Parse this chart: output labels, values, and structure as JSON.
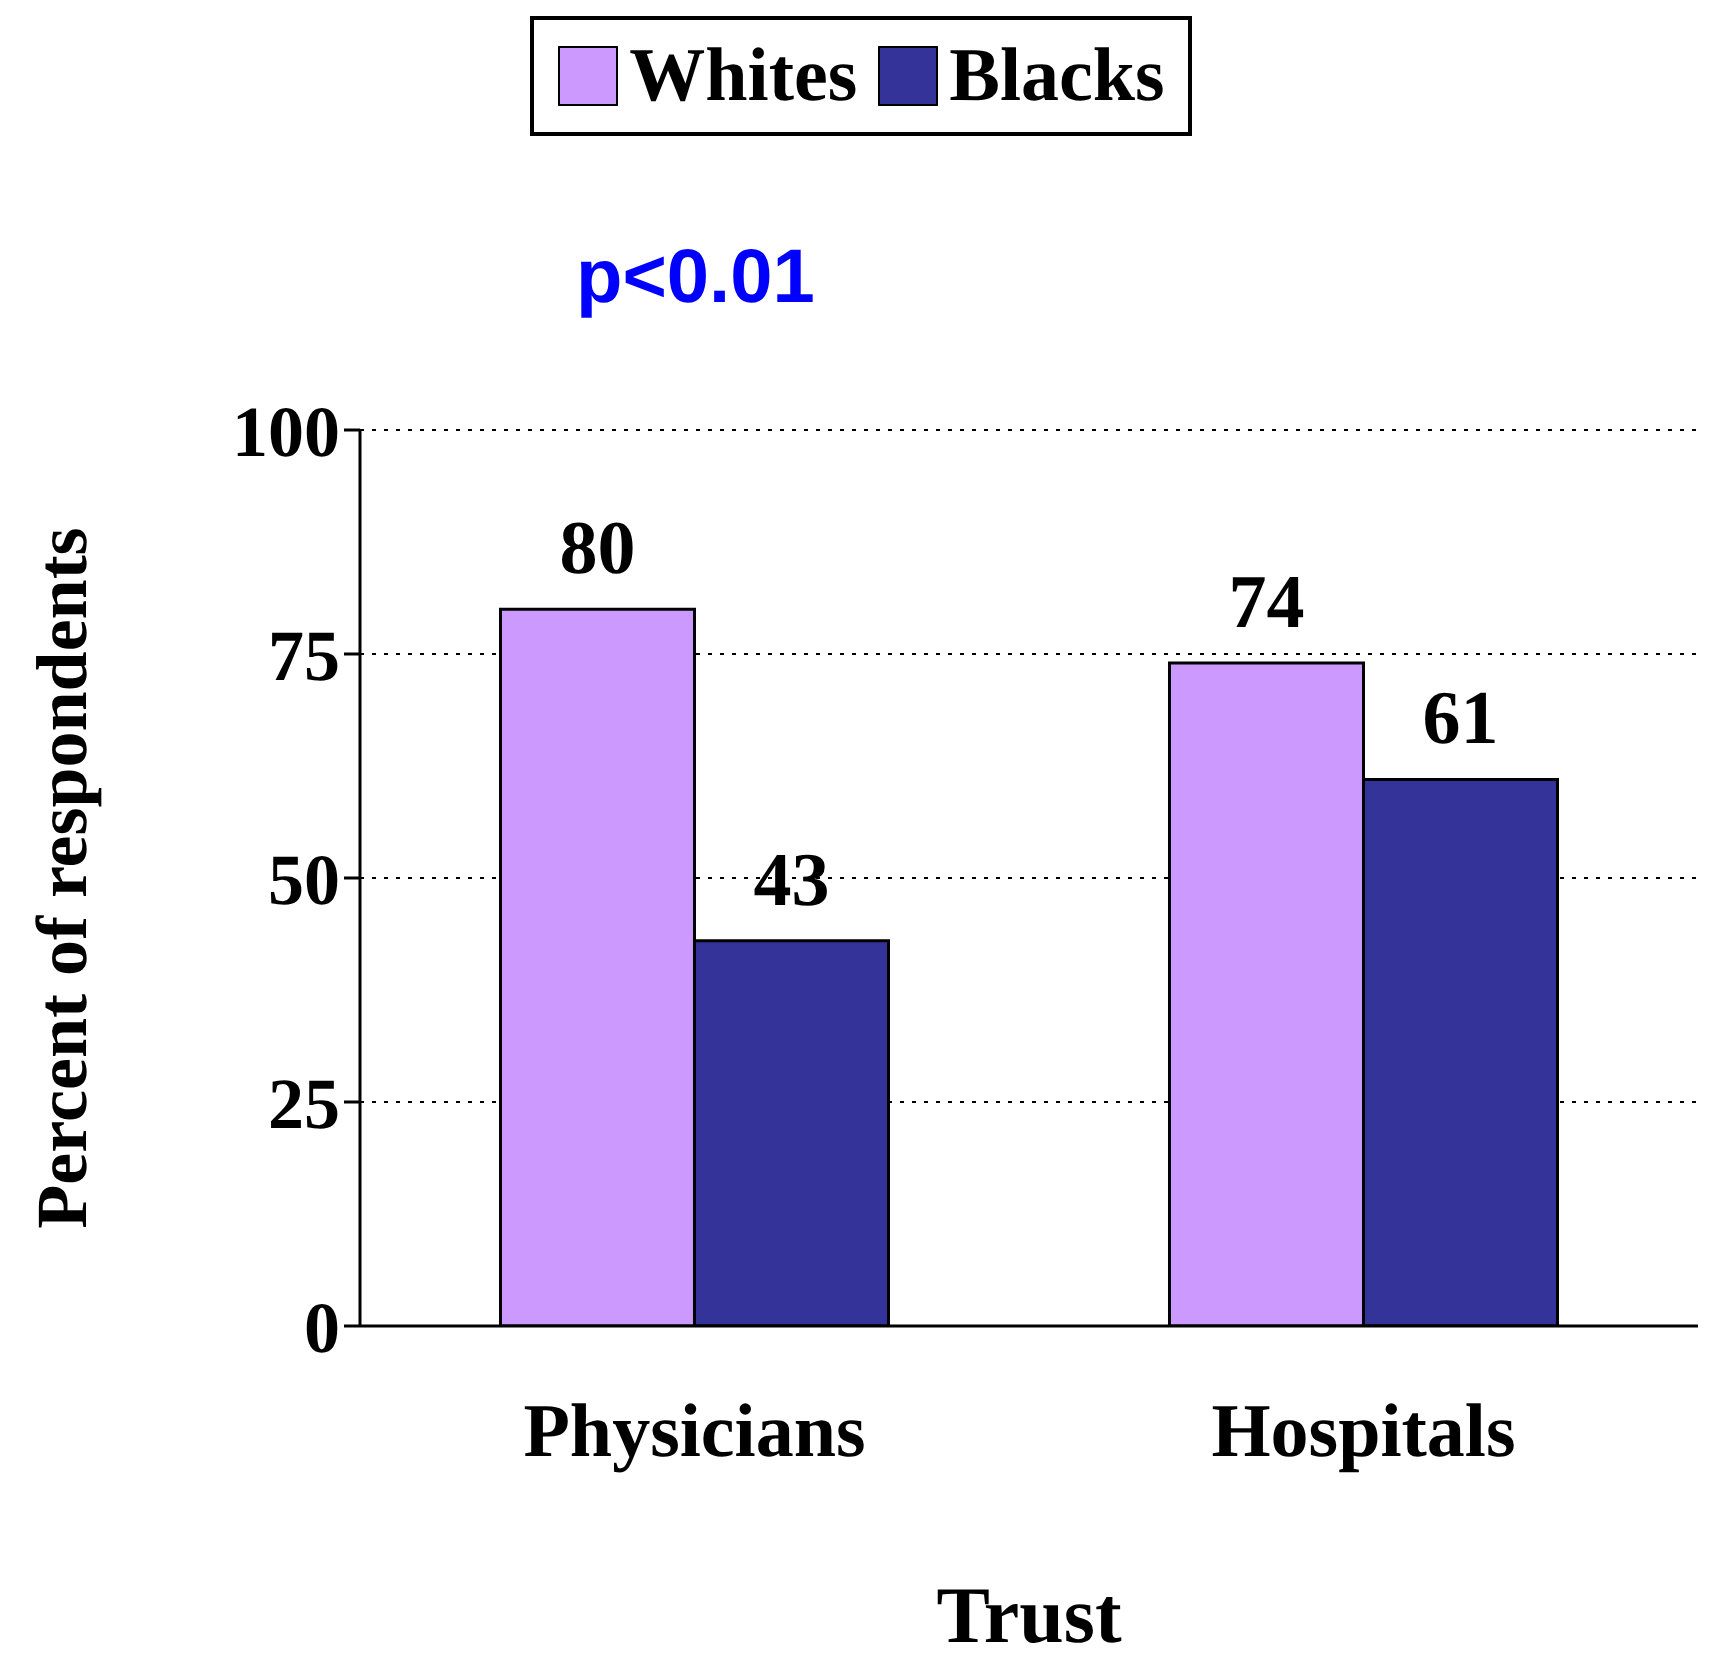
{
  "chart_data": {
    "type": "bar",
    "xlabel": "Trust",
    "ylabel": "Percent of respondents",
    "categories": [
      "Physicians",
      "Hospitals"
    ],
    "series": [
      {
        "name": "Whites",
        "color": "#cc99ff",
        "values": [
          80,
          74
        ]
      },
      {
        "name": "Blacks",
        "color": "#333399",
        "values": [
          43,
          61
        ]
      }
    ],
    "ylim": [
      0,
      100
    ],
    "yticks": [
      0,
      25,
      50,
      75,
      100
    ],
    "grid": "y",
    "legend": "top",
    "data_labels": true,
    "annotations": [
      "p<0.01"
    ]
  }
}
